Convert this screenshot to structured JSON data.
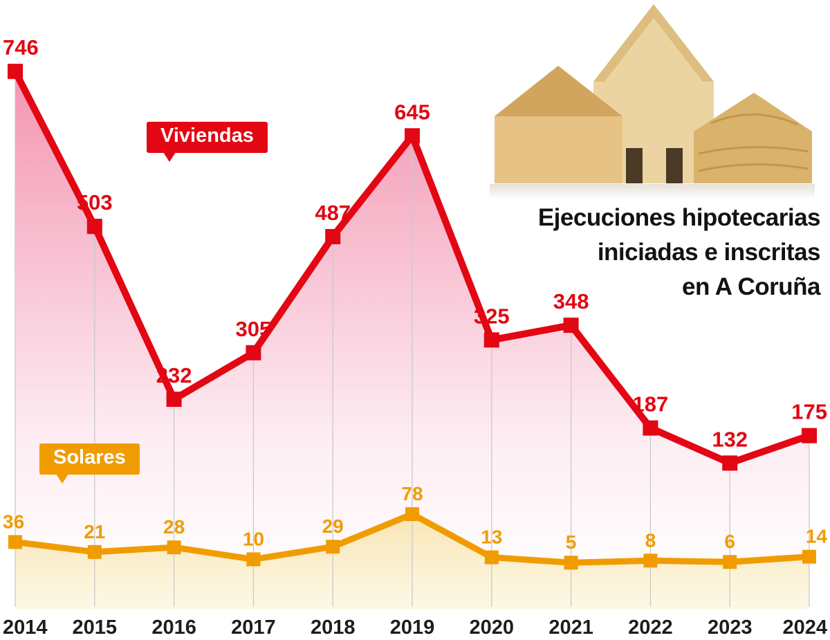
{
  "title": {
    "line1": "Ejecuciones hipotecarias",
    "line2": "iniciadas e inscritas",
    "line3": "en A Coruña"
  },
  "legend": {
    "viviendas": "Viviendas",
    "solares": "Solares"
  },
  "colors": {
    "red": "#e30613",
    "orange": "#f09c00",
    "grid": "#c9c9c9",
    "axis_text": "#1d1d1b",
    "pink_fill": "#ef6a93",
    "yellow_fill": "#f4d87e"
  },
  "chart_data": {
    "type": "line",
    "title": "Ejecuciones hipotecarias iniciadas e inscritas en A Coruña",
    "categories": [
      "2014",
      "2015",
      "2016",
      "2017",
      "2018",
      "2019",
      "2020",
      "2021",
      "2022",
      "2023",
      "2024"
    ],
    "series": [
      {
        "name": "Viviendas",
        "color": "#e30613",
        "values": [
          746,
          503,
          232,
          305,
          487,
          645,
          325,
          348,
          187,
          132,
          175
        ]
      },
      {
        "name": "Solares",
        "color": "#f09c00",
        "values": [
          36,
          21,
          28,
          10,
          29,
          78,
          13,
          5,
          8,
          6,
          14
        ]
      }
    ],
    "xlabel": "",
    "ylabel": "",
    "ylim": [
      0,
      800
    ],
    "grid": "vertical",
    "legend_position": "callout-labels",
    "marker": "square",
    "data_labels": true
  }
}
